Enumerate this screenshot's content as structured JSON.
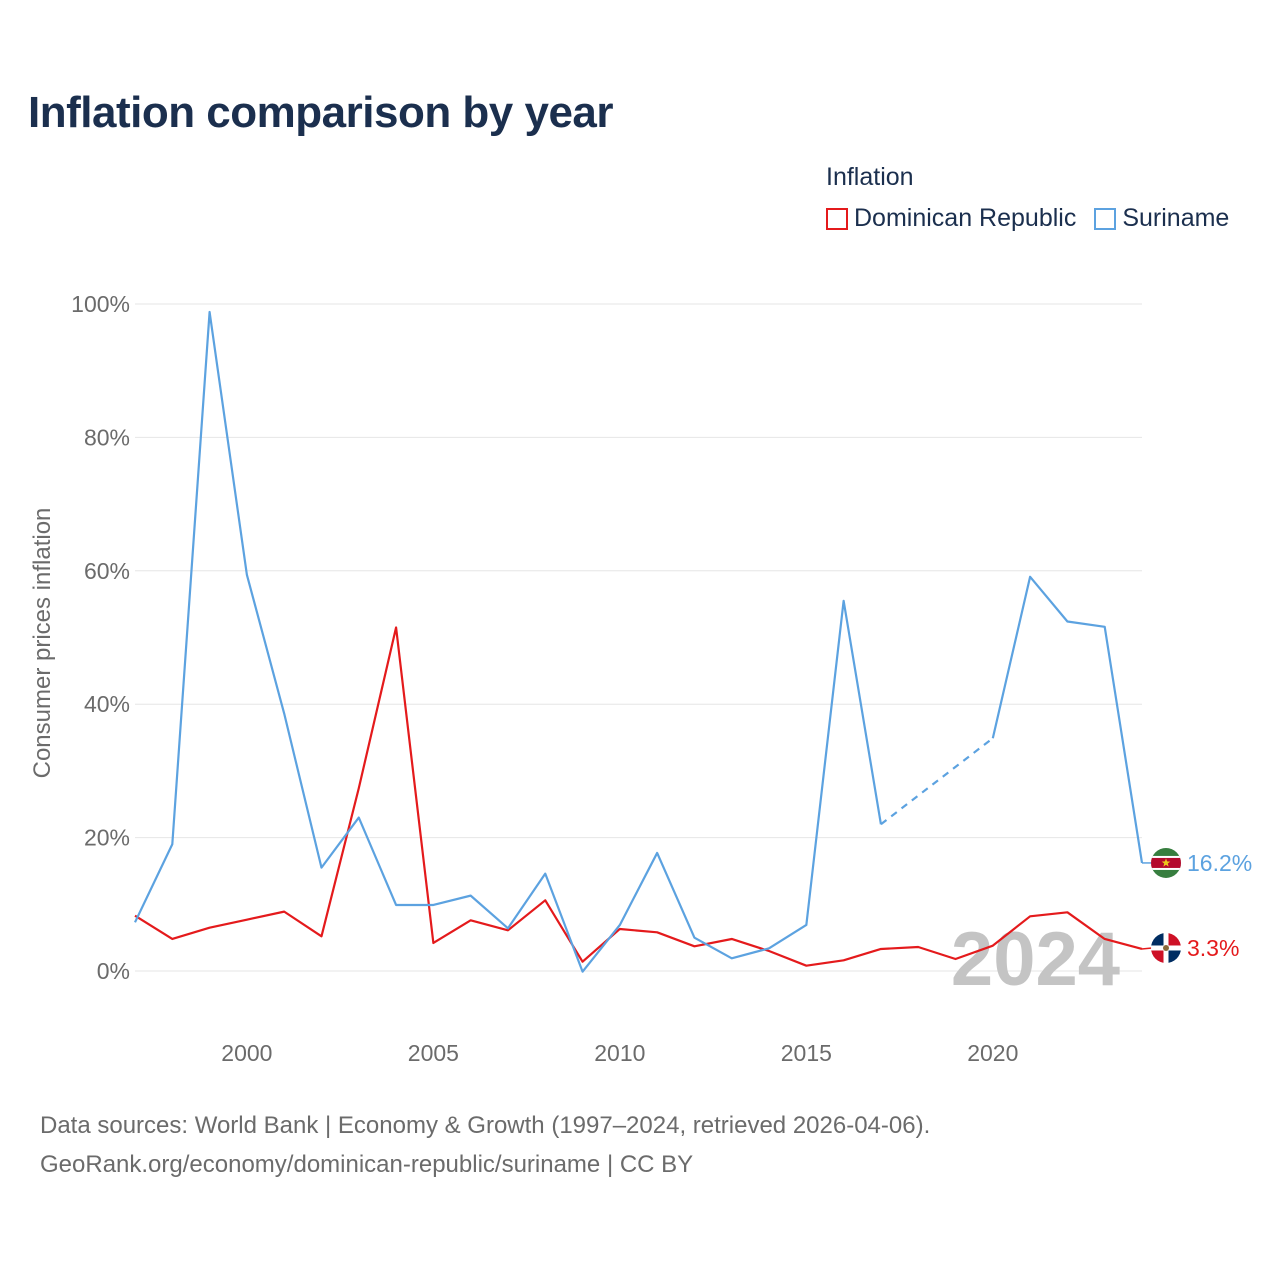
{
  "title": "Inflation comparison by year",
  "legend": {
    "title": "Inflation",
    "items": [
      {
        "label": "Dominican Republic",
        "color": "#e41a1c"
      },
      {
        "label": "Suriname",
        "color": "#5ca2e0"
      }
    ]
  },
  "chart_data": {
    "type": "line",
    "ylabel": "Consumer prices inflation",
    "xlabel": "",
    "xlim": [
      1997,
      2024
    ],
    "ylim": [
      0,
      100
    ],
    "x_ticks": [
      2000,
      2005,
      2010,
      2015,
      2020
    ],
    "y_ticks": [
      0,
      20,
      40,
      60,
      80,
      100
    ],
    "y_tick_labels": [
      "0%",
      "20%",
      "40%",
      "60%",
      "80%",
      "100%"
    ],
    "year_watermark": "2024",
    "x": [
      1997,
      1998,
      1999,
      2000,
      2001,
      2002,
      2003,
      2004,
      2005,
      2006,
      2007,
      2008,
      2009,
      2010,
      2011,
      2012,
      2013,
      2014,
      2015,
      2016,
      2017,
      2018,
      2019,
      2020,
      2021,
      2022,
      2023,
      2024
    ],
    "series": [
      {
        "name": "Dominican Republic",
        "color": "#e41a1c",
        "values": [
          8.3,
          4.8,
          6.5,
          7.7,
          8.9,
          5.2,
          27.4,
          51.5,
          4.2,
          7.6,
          6.1,
          10.6,
          1.4,
          6.3,
          5.8,
          3.7,
          4.8,
          3.0,
          0.8,
          1.6,
          3.3,
          3.6,
          1.8,
          3.8,
          8.2,
          8.8,
          4.8,
          3.3
        ],
        "end_label": "3.3%"
      },
      {
        "name": "Suriname",
        "color": "#5ca2e0",
        "values": [
          7.3,
          19.0,
          98.8,
          59.4,
          38.6,
          15.5,
          23.0,
          9.9,
          9.9,
          11.3,
          6.4,
          14.6,
          -0.1,
          6.9,
          17.7,
          5.0,
          1.9,
          3.4,
          6.9,
          55.5,
          22.0,
          null,
          null,
          34.9,
          59.1,
          52.4,
          51.6,
          16.2
        ],
        "gap_dashed": true,
        "end_label": "16.2%"
      }
    ]
  },
  "source": {
    "line1": "Data sources: World Bank | Economy & Growth (1997–2024, retrieved 2026-04-06).",
    "line2": "GeoRank.org/economy/dominican-republic/suriname | CC BY"
  }
}
